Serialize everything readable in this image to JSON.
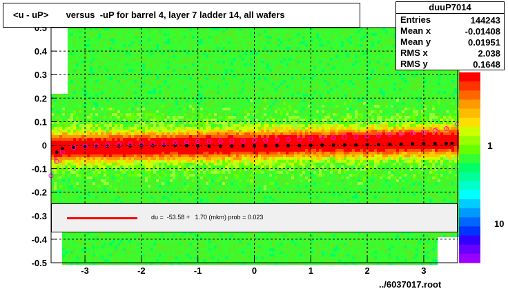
{
  "title": "<u - uP>       versus  -uP for barrel 4, layer 7 ladder 14, all wafers",
  "stats": {
    "name": "duuP7014",
    "rows": [
      {
        "label": "Entries",
        "value": "144243"
      },
      {
        "label": "Mean x",
        "value": "-0.01408"
      },
      {
        "label": "Mean y",
        "value": "0.01951"
      },
      {
        "label": "RMS x",
        "value": "2.038"
      },
      {
        "label": "RMS y",
        "value": "0.1648"
      }
    ]
  },
  "legend": {
    "line_color": "#ff0000",
    "text": "du =  -53.58 +   1.70 (mkm) prob = 0.023"
  },
  "footer": "../6037017.root",
  "chart_data": {
    "type": "heatmap",
    "title": "<u - uP>       versus  -uP for barrel 4, layer 7 ladder 14, all wafers",
    "xlim": [
      -3.6,
      3.6
    ],
    "ylim": [
      -0.5,
      0.5
    ],
    "x_ticks": [
      "-3",
      "-2",
      "-1",
      "0",
      "1",
      "2",
      "3"
    ],
    "y_ticks": [
      "-0.5",
      "-0.4",
      "-0.3",
      "-0.2",
      "-0.1",
      "0",
      "0.1",
      "0.2",
      "0.3",
      "0.4",
      "0.5"
    ],
    "z_scale": "log",
    "color_ticks": [
      "1",
      "10"
    ],
    "grid": true,
    "series": [
      {
        "marker": "filled-circle",
        "color": "#000000",
        "x": [
          -3.5,
          -3.4,
          -3.2,
          -3.0,
          -2.8,
          -2.6,
          -2.4,
          -2.2,
          -2.0,
          -1.8,
          -1.6,
          -1.4,
          -1.2,
          -1.0,
          -0.8,
          -0.6,
          -0.4,
          -0.2,
          0.0,
          0.2,
          0.4,
          0.6,
          0.8,
          1.0,
          1.2,
          1.4,
          1.6,
          1.8,
          2.0,
          2.2,
          2.4,
          2.6,
          2.8,
          3.0,
          3.2,
          3.4,
          3.5
        ],
        "y": [
          -0.03,
          -0.015,
          -0.01,
          -0.008,
          -0.006,
          -0.005,
          -0.004,
          -0.003,
          -0.002,
          -0.002,
          -0.001,
          -0.001,
          -0.002,
          -0.003,
          -0.004,
          -0.004,
          -0.004,
          -0.003,
          -0.003,
          -0.003,
          -0.002,
          -0.002,
          -0.002,
          -0.001,
          0.0,
          0.0,
          0.001,
          0.001,
          0.002,
          0.003,
          0.004,
          0.004,
          0.005,
          0.006,
          0.006,
          0.007,
          0.007
        ]
      },
      {
        "marker": "open-circle",
        "color": "#ff00ff",
        "x": [
          -3.6,
          -3.5,
          -3.4,
          -3.2,
          -3.0,
          -2.8,
          -2.6,
          -2.4,
          -2.2,
          -2.0,
          -1.8,
          -1.6,
          -1.4,
          -1.2,
          -1.0,
          -0.8,
          -0.6,
          -0.4,
          -0.2,
          0.0,
          0.2,
          0.4,
          0.6,
          0.8,
          1.0,
          1.2,
          1.4,
          1.6,
          1.8,
          2.0,
          2.2,
          2.4,
          2.6,
          2.8,
          3.0,
          3.2,
          3.4,
          3.6
        ],
        "y": [
          -0.13,
          -0.07,
          -0.03,
          -0.01,
          -0.005,
          0.0,
          0.002,
          0.004,
          0.005,
          0.006,
          0.008,
          0.01,
          0.012,
          0.014,
          0.015,
          0.016,
          0.016,
          0.017,
          0.018,
          0.02,
          0.021,
          0.022,
          0.024,
          0.026,
          0.028,
          0.03,
          0.032,
          0.035,
          0.037,
          0.04,
          0.042,
          0.045,
          0.048,
          0.052,
          0.056,
          0.062,
          0.07,
          0.09
        ]
      }
    ],
    "fit": {
      "slope": 0.017,
      "intercept": -0.054
    }
  }
}
